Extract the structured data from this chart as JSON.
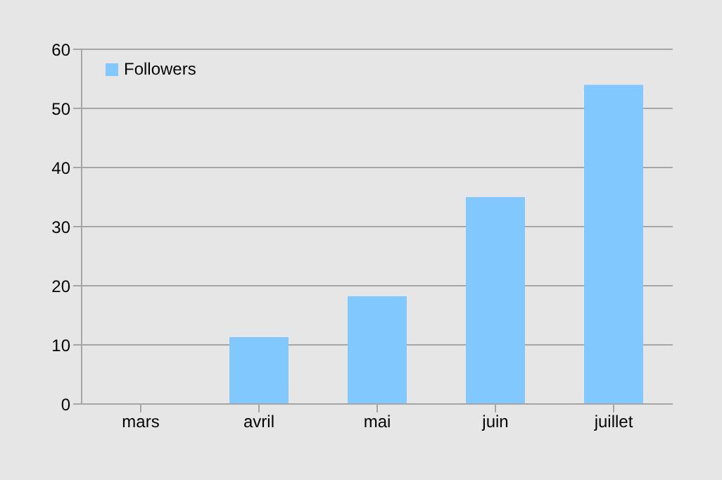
{
  "chart_data": {
    "type": "bar",
    "categories": [
      "mars",
      "avril",
      "mai",
      "juin",
      "juillet"
    ],
    "series": [
      {
        "name": "Followers",
        "color": "#80c8ff",
        "values": [
          0,
          11.3,
          18.2,
          35,
          54
        ]
      }
    ],
    "ylim": [
      0,
      60
    ],
    "yticks": [
      0,
      10,
      20,
      30,
      40,
      50,
      60
    ],
    "grid": "y",
    "legend": "top left"
  }
}
